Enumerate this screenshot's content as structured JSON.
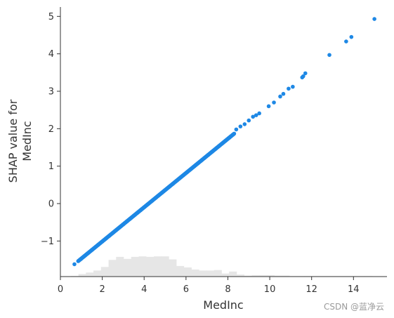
{
  "chart_data": {
    "type": "scatter",
    "title": "",
    "xlabel": "MedInc",
    "ylabel_lines": [
      "SHAP value for",
      "MedInc"
    ],
    "xlim": [
      0,
      15.6
    ],
    "ylim": [
      -1.95,
      5.25
    ],
    "xticks": [
      0,
      2,
      4,
      6,
      8,
      10,
      12,
      14
    ],
    "yticks": [
      -1,
      0,
      1,
      2,
      3,
      4,
      5
    ],
    "ytick_labels": [
      "−1",
      "0",
      "1",
      "2",
      "3",
      "4",
      "5"
    ],
    "grid": false,
    "point_color": "#1e88e5",
    "histogram_color": "#e6e6e6",
    "dense_line": {
      "x_start": 0.85,
      "x_end": 8.3,
      "count": 500
    },
    "points": [
      [
        0.67,
        -1.62
      ],
      [
        8.4,
        1.98
      ],
      [
        8.6,
        2.06
      ],
      [
        8.8,
        2.12
      ],
      [
        9.0,
        2.22
      ],
      [
        9.2,
        2.32
      ],
      [
        9.35,
        2.36
      ],
      [
        9.5,
        2.41
      ],
      [
        9.95,
        2.6
      ],
      [
        10.2,
        2.7
      ],
      [
        10.5,
        2.86
      ],
      [
        10.65,
        2.93
      ],
      [
        10.9,
        3.07
      ],
      [
        11.1,
        3.12
      ],
      [
        11.55,
        3.37
      ],
      [
        11.6,
        3.4
      ],
      [
        11.7,
        3.48
      ],
      [
        12.85,
        3.97
      ],
      [
        13.65,
        4.33
      ],
      [
        13.9,
        4.45
      ],
      [
        15.0,
        4.93
      ]
    ],
    "histogram": {
      "bin_start": 0.5,
      "bin_width": 0.36,
      "relative_counts": [
        0.02,
        0.1,
        0.16,
        0.24,
        0.38,
        0.66,
        0.78,
        0.7,
        0.78,
        0.8,
        0.78,
        0.8,
        0.8,
        0.68,
        0.42,
        0.36,
        0.28,
        0.24,
        0.24,
        0.26,
        0.12,
        0.2,
        0.08,
        0.04,
        0.06,
        0.06,
        0.06,
        0.04,
        0.04,
        0.02,
        0.02,
        0.02,
        0.02,
        0.02,
        0.02,
        0.02,
        0.02,
        0.02,
        0.02,
        0.02,
        0.0,
        0.0,
        0.0,
        0.0,
        0.0,
        0.0,
        0.0,
        0.0,
        0.0,
        0.0,
        0.0,
        0.0,
        0.0,
        0.0,
        0.0,
        0.0,
        0.0,
        0.0,
        0.0,
        0.0,
        0.0,
        0.0,
        0.0,
        0.0,
        0.0,
        0.0,
        0.0,
        0.0,
        0.0,
        0.0,
        0.0,
        0.0,
        0.0,
        0.0,
        0.0,
        0.0,
        0.0,
        0.0,
        0.0,
        0.0,
        0.0,
        0.0,
        0.0,
        0.0,
        0.0,
        0.0,
        0.0,
        0.0,
        0.0,
        0.0,
        0.0,
        0.0,
        0.0,
        0.0,
        0.0,
        0.0,
        0.0,
        0.0,
        0.0,
        0.0
      ]
    }
  },
  "watermark": "CSDN @蓝净云"
}
